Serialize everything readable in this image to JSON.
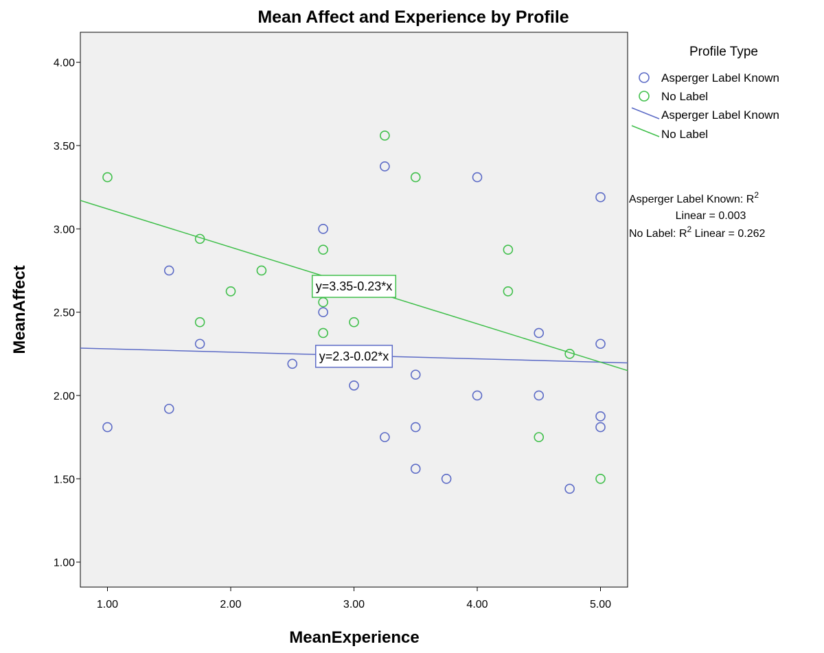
{
  "chart_data": {
    "type": "scatter",
    "title": "Mean Affect and Experience by Profile",
    "xlabel": "MeanExperience",
    "ylabel": "MeanAffect",
    "xlim": [
      0.78,
      5.22
    ],
    "ylim": [
      0.85,
      4.18
    ],
    "xticks": [
      "1.00",
      "2.00",
      "3.00",
      "4.00",
      "5.00"
    ],
    "yticks": [
      "1.00",
      "1.50",
      "2.00",
      "2.50",
      "3.00",
      "3.50",
      "4.00"
    ],
    "background": "#f0f0f0",
    "grid": false,
    "legend": {
      "title": "Profile  Type",
      "placement": "right",
      "marker_entries": [
        "Asperger Label Known",
        "No Label"
      ],
      "line_entries": [
        "Asperger Label Known",
        "No Label"
      ]
    },
    "fit_stats": {
      "asperger_line1": "Asperger Label Known: R",
      "asperger_sup": "2",
      "asperger_line2": "Linear = 0.003",
      "nolabel_prefix": "No Label: R",
      "nolabel_sup": "2",
      "nolabel_suffix": " Linear = 0.262"
    },
    "series": [
      {
        "name": "Asperger Label Known",
        "color": "#5b6ac6",
        "fit": {
          "intercept": 2.3,
          "slope": -0.02,
          "label": "y=2.3-0.02*x",
          "label_at": [
            3.0,
            2.235
          ]
        },
        "points": [
          [
            1.0,
            1.81
          ],
          [
            1.5,
            2.75
          ],
          [
            1.5,
            1.92
          ],
          [
            1.75,
            2.31
          ],
          [
            2.5,
            2.19
          ],
          [
            2.75,
            3.0
          ],
          [
            2.75,
            2.5
          ],
          [
            3.0,
            2.06
          ],
          [
            3.25,
            3.375
          ],
          [
            3.25,
            1.75
          ],
          [
            3.5,
            2.125
          ],
          [
            3.5,
            1.81
          ],
          [
            3.5,
            1.56
          ],
          [
            3.75,
            1.5
          ],
          [
            4.0,
            3.31
          ],
          [
            4.0,
            2.0
          ],
          [
            4.5,
            2.375
          ],
          [
            4.5,
            2.0
          ],
          [
            4.75,
            1.44
          ],
          [
            5.0,
            3.19
          ],
          [
            5.0,
            2.31
          ],
          [
            5.0,
            1.875
          ],
          [
            5.0,
            1.81
          ]
        ]
      },
      {
        "name": "No Label",
        "color": "#3fbf4a",
        "fit": {
          "intercept": 3.35,
          "slope": -0.23,
          "label": "y=3.35-0.23*x",
          "label_at": [
            3.0,
            2.655
          ]
        },
        "points": [
          [
            1.0,
            3.31
          ],
          [
            1.75,
            2.94
          ],
          [
            1.75,
            2.44
          ],
          [
            2.0,
            2.625
          ],
          [
            2.25,
            2.75
          ],
          [
            2.75,
            2.875
          ],
          [
            2.75,
            2.56
          ],
          [
            2.75,
            2.375
          ],
          [
            3.0,
            2.44
          ],
          [
            3.25,
            3.56
          ],
          [
            3.5,
            3.31
          ],
          [
            4.25,
            2.875
          ],
          [
            4.25,
            2.625
          ],
          [
            4.5,
            1.75
          ],
          [
            4.75,
            2.25
          ],
          [
            5.0,
            1.5
          ]
        ]
      }
    ]
  }
}
